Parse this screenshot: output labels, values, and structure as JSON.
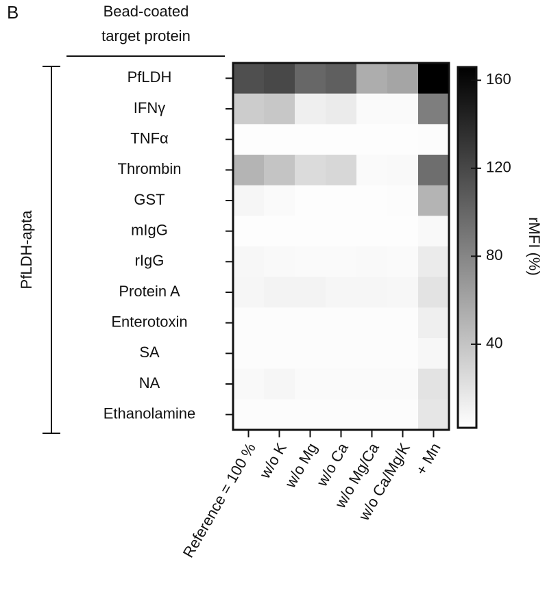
{
  "chart_data": {
    "type": "heatmap",
    "panel_label": "B",
    "row_header": [
      "Bead-coated",
      "target protein"
    ],
    "row_group_label": "PfLDH-apta",
    "colorbar_label": "rMFI (%)",
    "rows": [
      "PfLDH",
      "IFNγ",
      "TNFα",
      "Thrombin",
      "GST",
      "mIgG",
      "rIgG",
      "Protein A",
      "Enterotoxin",
      "SA",
      "NA",
      "Ethanolamine"
    ],
    "columns": [
      "Reference = 100 %",
      "w/o K",
      "w/o Mg",
      "w/o Ca",
      "w/o Mg/Ca",
      "w/o Ca/Mg/K",
      "+ Mn"
    ],
    "values": [
      [
        115,
        120,
        100,
        105,
        55,
        60,
        166
      ],
      [
        35,
        38,
        12,
        15,
        5,
        5,
        85
      ],
      [
        3,
        3,
        3,
        3,
        3,
        3,
        4
      ],
      [
        50,
        40,
        25,
        28,
        5,
        6,
        95
      ],
      [
        8,
        5,
        3,
        3,
        3,
        4,
        50
      ],
      [
        3,
        3,
        3,
        3,
        3,
        3,
        6
      ],
      [
        7,
        6,
        5,
        5,
        6,
        5,
        15
      ],
      [
        8,
        10,
        10,
        8,
        8,
        7,
        20
      ],
      [
        4,
        4,
        4,
        4,
        4,
        4,
        12
      ],
      [
        4,
        4,
        4,
        4,
        4,
        4,
        7
      ],
      [
        6,
        8,
        5,
        5,
        5,
        5,
        20
      ],
      [
        4,
        4,
        4,
        4,
        4,
        4,
        18
      ]
    ],
    "zlim": [
      2,
      166
    ],
    "zticks": [
      40,
      80,
      120,
      160
    ],
    "colormap": [
      "#ffffff",
      "#000000"
    ]
  }
}
